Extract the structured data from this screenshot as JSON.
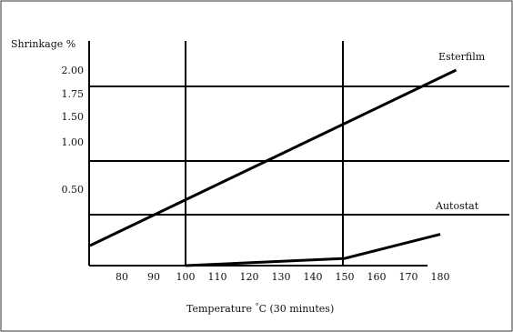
{
  "chart_data": {
    "type": "line",
    "ylabel": "Shrinkage %",
    "xlabel": "Temperature °C (30 minutes)",
    "xlabel_parts": {
      "prefix": "Temperature ",
      "degree": "°",
      "suffix": "C (30 minutes)"
    },
    "x_ticks": [
      "80",
      "90",
      "100",
      "110",
      "120",
      "130",
      "140",
      "150",
      "160",
      "170",
      "180"
    ],
    "y_ticks": [
      "0.50",
      "1.00",
      "1.50",
      "1.75",
      "2.00"
    ],
    "grid": "partial",
    "xlim": [
      70,
      190
    ],
    "series": [
      {
        "name": "Esterfilm",
        "x": [
          70,
          185
        ],
        "y": [
          0.0,
          2.0
        ],
        "color": "#000000"
      },
      {
        "name": "Autostat",
        "x": [
          100,
          150,
          180
        ],
        "y": [
          -0.7,
          -0.45,
          0.1
        ],
        "color": "#000000"
      }
    ]
  }
}
